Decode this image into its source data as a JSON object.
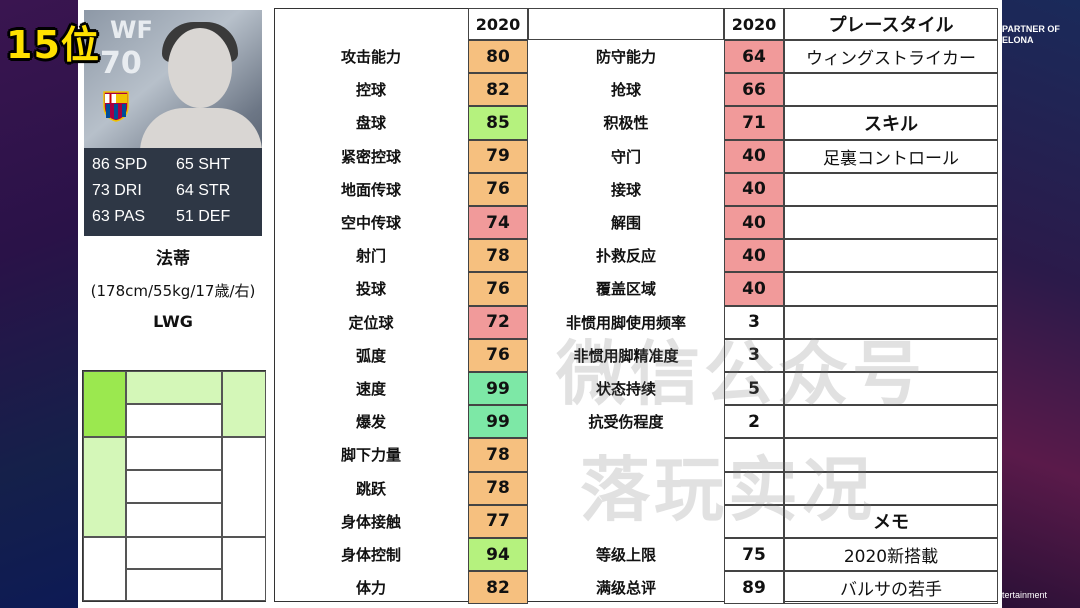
{
  "rank": "15位",
  "partner_text": [
    "PARTNER OF",
    "ELONA"
  ],
  "footer_text": "tertainment",
  "card": {
    "position": "WF",
    "rating": "70",
    "club_badge_icon": "fc-barcelona-crest-icon",
    "stats": [
      "86 SPD",
      "65 SHT",
      "73 DRI",
      "64 STR",
      "63 PAS",
      "51 DEF"
    ]
  },
  "player": {
    "name": "法蒂",
    "info": "(178cm/55kg/17歳/右)",
    "position": "LWG"
  },
  "header": {
    "year_left": "2020",
    "year_right": "2020",
    "play_style_title": "プレースタイル"
  },
  "left_stats": [
    {
      "label": "攻击能力",
      "value": "80",
      "color": "#f6c07f"
    },
    {
      "label": "控球",
      "value": "82",
      "color": "#f6c07f"
    },
    {
      "label": "盘球",
      "value": "85",
      "color": "#b5f27e"
    },
    {
      "label": "紧密控球",
      "value": "79",
      "color": "#f6c07f"
    },
    {
      "label": "地面传球",
      "value": "76",
      "color": "#f6c07f"
    },
    {
      "label": "空中传球",
      "value": "74",
      "color": "#f19a9a"
    },
    {
      "label": "射门",
      "value": "78",
      "color": "#f6c07f"
    },
    {
      "label": "投球",
      "value": "76",
      "color": "#f6c07f"
    },
    {
      "label": "定位球",
      "value": "72",
      "color": "#f19a9a"
    },
    {
      "label": "弧度",
      "value": "76",
      "color": "#f6c07f"
    },
    {
      "label": "速度",
      "value": "99",
      "color": "#7de8a6"
    },
    {
      "label": "爆发",
      "value": "99",
      "color": "#7de8a6"
    },
    {
      "label": "脚下力量",
      "value": "78",
      "color": "#f6c07f"
    },
    {
      "label": "跳跃",
      "value": "78",
      "color": "#f6c07f"
    },
    {
      "label": "身体接触",
      "value": "77",
      "color": "#f6c07f"
    },
    {
      "label": "身体控制",
      "value": "94",
      "color": "#b5f27e"
    },
    {
      "label": "体力",
      "value": "82",
      "color": "#f6c07f"
    }
  ],
  "right_stats": [
    {
      "label": "防守能力",
      "value": "64",
      "color": "#f19a9a"
    },
    {
      "label": "抢球",
      "value": "66",
      "color": "#f19a9a"
    },
    {
      "label": "积极性",
      "value": "71",
      "color": "#f19a9a"
    },
    {
      "label": "守门",
      "value": "40",
      "color": "#f19a9a"
    },
    {
      "label": "接球",
      "value": "40",
      "color": "#f19a9a"
    },
    {
      "label": "解围",
      "value": "40",
      "color": "#f19a9a"
    },
    {
      "label": "扑救反应",
      "value": "40",
      "color": "#f19a9a"
    },
    {
      "label": "覆盖区域",
      "value": "40",
      "color": "#f19a9a"
    },
    {
      "label": "非惯用脚使用频率",
      "value": "3",
      "color": "#ffffff"
    },
    {
      "label": "非惯用脚精准度",
      "value": "3",
      "color": "#ffffff"
    },
    {
      "label": "状态持续",
      "value": "5",
      "color": "#ffffff"
    },
    {
      "label": "抗受伤程度",
      "value": "2",
      "color": "#ffffff"
    },
    {
      "label": "",
      "value": "",
      "color": "#ffffff"
    },
    {
      "label": "",
      "value": "",
      "color": "#ffffff"
    },
    {
      "label": "",
      "value": "",
      "color": "#ffffff"
    },
    {
      "label": "等级上限",
      "value": "75",
      "color": "#ffffff"
    },
    {
      "label": "满级总评",
      "value": "89",
      "color": "#ffffff"
    }
  ],
  "side_column": [
    {
      "text": "ウィングストライカー",
      "bold": false
    },
    {
      "text": "",
      "bold": false
    },
    {
      "text": "スキル",
      "bold": true
    },
    {
      "text": "足裏コントロール",
      "bold": false
    },
    {
      "text": "",
      "bold": false
    },
    {
      "text": "",
      "bold": false
    },
    {
      "text": "",
      "bold": false
    },
    {
      "text": "",
      "bold": false
    },
    {
      "text": "",
      "bold": false
    },
    {
      "text": "",
      "bold": false
    },
    {
      "text": "",
      "bold": false
    },
    {
      "text": "",
      "bold": false
    },
    {
      "text": "",
      "bold": false
    },
    {
      "text": "",
      "bold": false
    },
    {
      "text": "メモ",
      "bold": true
    },
    {
      "text": "2020新搭載",
      "bold": false
    },
    {
      "text": "バルサの若手",
      "bold": false
    }
  ],
  "watermark": [
    "微信公众号",
    "落玩实况"
  ],
  "position_map_colors": {
    "strong": "#9be84f",
    "mid": "#d4f7b8",
    "none": "#ffffff"
  }
}
